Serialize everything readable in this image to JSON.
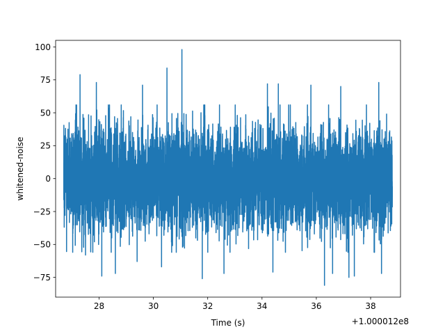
{
  "chart_data": {
    "type": "line",
    "title": "",
    "xlabel": "Time (s)",
    "ylabel": "whitened-noise",
    "x_offset_label": "+1.000012e8",
    "xlim": [
      26.4,
      39.1
    ],
    "ylim": [
      -90,
      105
    ],
    "x_ticks": [
      28,
      30,
      32,
      34,
      36,
      38
    ],
    "x_tick_labels": [
      "28",
      "30",
      "32",
      "34",
      "36",
      "38"
    ],
    "y_ticks": [
      -75,
      -50,
      -25,
      0,
      25,
      50,
      75,
      100
    ],
    "y_tick_labels": [
      "−75",
      "−50",
      "−25",
      "0",
      "25",
      "50",
      "75",
      "100"
    ],
    "grid": false,
    "legend": "none",
    "series": [
      {
        "color": "#1f77b4",
        "x_range": [
          26.7,
          38.8
        ],
        "approx_std": 19,
        "envelope_typical": [
          -50,
          50
        ],
        "peaks": [
          {
            "x": 27.3,
            "y": 79
          },
          {
            "x": 27.9,
            "y": 73
          },
          {
            "x": 29.6,
            "y": 71
          },
          {
            "x": 30.5,
            "y": 84
          },
          {
            "x": 31.05,
            "y": 98
          },
          {
            "x": 31.8,
            "y": 72
          },
          {
            "x": 34.2,
            "y": 72
          },
          {
            "x": 34.6,
            "y": 72
          },
          {
            "x": 35.8,
            "y": 71
          },
          {
            "x": 36.9,
            "y": 70
          },
          {
            "x": 38.3,
            "y": 73
          }
        ],
        "troughs": [
          {
            "x": 27.5,
            "y": -58
          },
          {
            "x": 28.1,
            "y": -74
          },
          {
            "x": 28.6,
            "y": -72
          },
          {
            "x": 29.4,
            "y": -63
          },
          {
            "x": 30.3,
            "y": -67
          },
          {
            "x": 31.8,
            "y": -76
          },
          {
            "x": 32.6,
            "y": -72
          },
          {
            "x": 34.4,
            "y": -71
          },
          {
            "x": 36.3,
            "y": -81
          },
          {
            "x": 36.6,
            "y": -72
          },
          {
            "x": 37.2,
            "y": -75
          },
          {
            "x": 37.4,
            "y": -74
          },
          {
            "x": 38.4,
            "y": -72
          }
        ]
      }
    ]
  }
}
